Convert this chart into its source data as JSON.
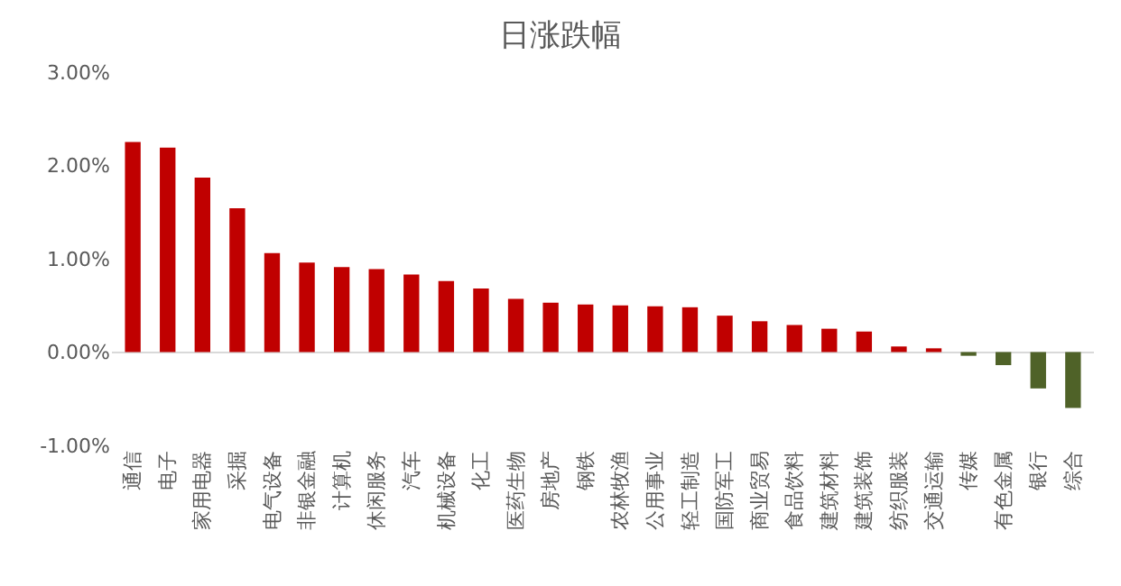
{
  "chart_data": {
    "type": "bar",
    "title": "日涨跌幅",
    "categories": [
      "通信",
      "电子",
      "家用电器",
      "采掘",
      "电气设备",
      "非银金融",
      "计算机",
      "休闲服务",
      "汽车",
      "机械设备",
      "化工",
      "医药生物",
      "房地产",
      "钢铁",
      "农林牧渔",
      "公用事业",
      "轻工制造",
      "国防军工",
      "商业贸易",
      "食品饮料",
      "建筑材料",
      "建筑装饰",
      "纺织服装",
      "交通运输",
      "传媒",
      "有色金属",
      "银行",
      "综合"
    ],
    "values": [
      2.25,
      2.19,
      1.87,
      1.54,
      1.06,
      0.96,
      0.91,
      0.89,
      0.83,
      0.76,
      0.68,
      0.57,
      0.53,
      0.51,
      0.5,
      0.49,
      0.48,
      0.39,
      0.33,
      0.29,
      0.25,
      0.22,
      0.06,
      0.04,
      -0.04,
      -0.14,
      -0.39,
      -0.6
    ],
    "colors": [
      "#c00000",
      "#c00000",
      "#c00000",
      "#c00000",
      "#c00000",
      "#c00000",
      "#c00000",
      "#c00000",
      "#c00000",
      "#c00000",
      "#c00000",
      "#c00000",
      "#c00000",
      "#c00000",
      "#c00000",
      "#c00000",
      "#c00000",
      "#c00000",
      "#c00000",
      "#c00000",
      "#c00000",
      "#c00000",
      "#c00000",
      "#c00000",
      "#4f6228",
      "#4f6228",
      "#4f6228",
      "#4f6228"
    ],
    "ylim": [
      -1,
      3
    ],
    "yticks": [
      {
        "value": -1,
        "label": "-1.00%"
      },
      {
        "value": 0,
        "label": "0.00%"
      },
      {
        "value": 1,
        "label": "1.00%"
      },
      {
        "value": 2,
        "label": "2.00%"
      },
      {
        "value": 3,
        "label": "3.00%"
      }
    ],
    "legend": false
  }
}
